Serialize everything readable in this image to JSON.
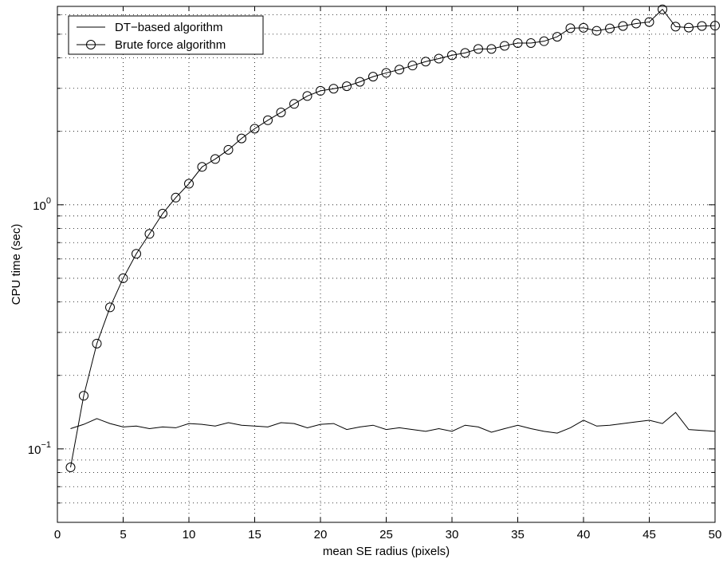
{
  "chart_data": {
    "type": "line",
    "title": "",
    "xlabel": "mean SE radius (pixels)",
    "ylabel": "CPU time (sec)",
    "xlim": [
      0,
      50
    ],
    "ylim": [
      0.05,
      6.5
    ],
    "y_scale": "log",
    "grid": true,
    "legend_position": "top-left",
    "x_ticks": [
      "0",
      "5",
      "10",
      "15",
      "20",
      "25",
      "30",
      "35",
      "40",
      "45",
      "50"
    ],
    "x_tick_values": [
      0,
      5,
      10,
      15,
      20,
      25,
      30,
      35,
      40,
      45,
      50
    ],
    "y_ticks": [
      {
        "value": 0.1,
        "base": "10",
        "exp": "−1"
      },
      {
        "value": 1,
        "base": "10",
        "exp": "0"
      }
    ],
    "series": [
      {
        "name": "DT−based algorithm",
        "marker": "none",
        "color": "#000000",
        "x": [
          1,
          2,
          3,
          4,
          5,
          6,
          7,
          8,
          9,
          10,
          11,
          12,
          13,
          14,
          15,
          16,
          17,
          18,
          19,
          20,
          21,
          22,
          23,
          24,
          25,
          26,
          27,
          28,
          29,
          30,
          31,
          32,
          33,
          34,
          35,
          36,
          37,
          38,
          39,
          40,
          41,
          42,
          43,
          44,
          45,
          46,
          47,
          48,
          49,
          50
        ],
        "values": [
          0.121,
          0.126,
          0.133,
          0.127,
          0.123,
          0.124,
          0.121,
          0.123,
          0.122,
          0.127,
          0.126,
          0.124,
          0.128,
          0.125,
          0.124,
          0.123,
          0.128,
          0.127,
          0.122,
          0.126,
          0.127,
          0.12,
          0.123,
          0.125,
          0.12,
          0.122,
          0.12,
          0.118,
          0.121,
          0.118,
          0.125,
          0.123,
          0.117,
          0.121,
          0.125,
          0.121,
          0.118,
          0.116,
          0.122,
          0.131,
          0.124,
          0.125,
          0.127,
          0.129,
          0.131,
          0.127,
          0.141,
          0.12,
          0.119,
          0.118
        ]
      },
      {
        "name": "Brute force algorithm",
        "marker": "circle",
        "color": "#000000",
        "x": [
          1,
          2,
          3,
          4,
          5,
          6,
          7,
          8,
          9,
          10,
          11,
          12,
          13,
          14,
          15,
          16,
          17,
          18,
          19,
          20,
          21,
          22,
          23,
          24,
          25,
          26,
          27,
          28,
          29,
          30,
          31,
          32,
          33,
          34,
          35,
          36,
          37,
          38,
          39,
          40,
          41,
          42,
          43,
          44,
          45,
          46,
          47,
          48,
          49,
          50
        ],
        "values": [
          0.084,
          0.165,
          0.27,
          0.38,
          0.5,
          0.63,
          0.76,
          0.92,
          1.07,
          1.22,
          1.43,
          1.54,
          1.68,
          1.87,
          2.05,
          2.22,
          2.39,
          2.59,
          2.79,
          2.93,
          2.99,
          3.06,
          3.19,
          3.35,
          3.47,
          3.58,
          3.72,
          3.86,
          3.97,
          4.1,
          4.19,
          4.35,
          4.35,
          4.48,
          4.6,
          4.6,
          4.68,
          4.88,
          5.29,
          5.31,
          5.16,
          5.28,
          5.4,
          5.53,
          5.61,
          6.32,
          5.37,
          5.32,
          5.4,
          5.42
        ]
      }
    ]
  }
}
